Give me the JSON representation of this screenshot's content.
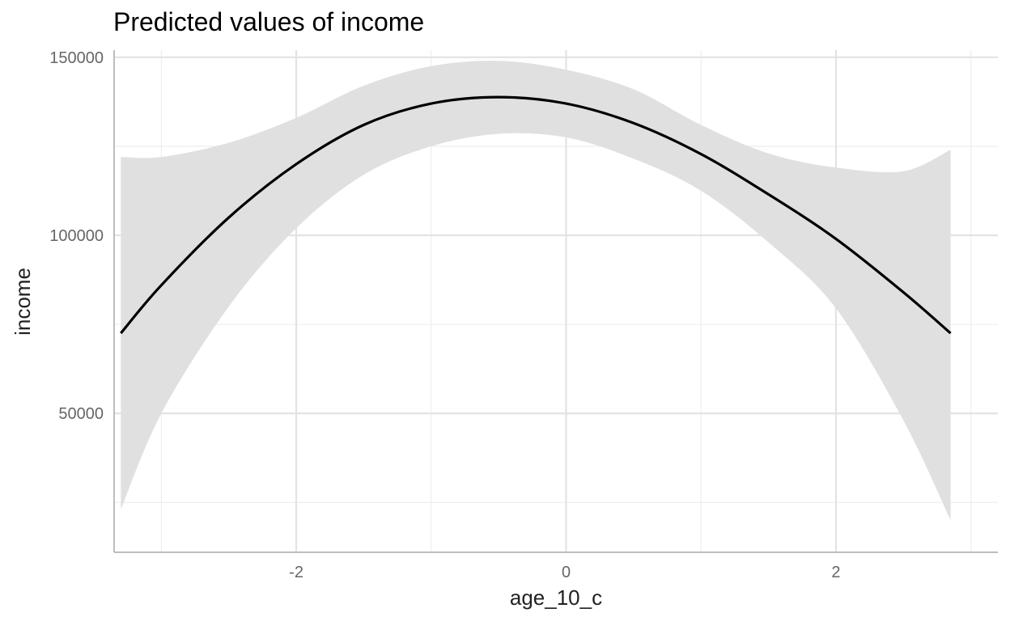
{
  "chart_data": {
    "type": "line",
    "title": "Predicted values of income",
    "xlabel": "age_10_c",
    "ylabel": "income",
    "xlim": [
      -3.35,
      3.2
    ],
    "ylim": [
      11000,
      152000
    ],
    "x_ticks": [
      -2,
      0,
      2
    ],
    "x_tick_labels": [
      "-2",
      "0",
      "2"
    ],
    "y_ticks": [
      50000,
      100000,
      150000
    ],
    "y_tick_labels": [
      "50000",
      "100000",
      "150000"
    ],
    "grid": true,
    "legend": "none",
    "colors": {
      "line": "#000000",
      "ribbon": "#e0e0e0"
    },
    "series": [
      {
        "x": [
          -3.3,
          -3.0,
          -2.5,
          -2.0,
          -1.5,
          -1.0,
          -0.5,
          0.0,
          0.5,
          1.0,
          1.5,
          2.0,
          2.5,
          2.85
        ],
        "values": [
          72500,
          86000,
          105000,
          120000,
          131000,
          137000,
          138800,
          137000,
          131500,
          122800,
          111500,
          99000,
          84000,
          72500
        ],
        "lower": [
          23000,
          50000,
          80000,
          102000,
          117000,
          125000,
          128500,
          127500,
          121500,
          112500,
          98000,
          79500,
          48000,
          20000
        ],
        "upper": [
          122000,
          122000,
          126000,
          133000,
          142000,
          147500,
          149000,
          146500,
          141000,
          131000,
          123000,
          119000,
          118000,
          124000
        ]
      }
    ]
  }
}
